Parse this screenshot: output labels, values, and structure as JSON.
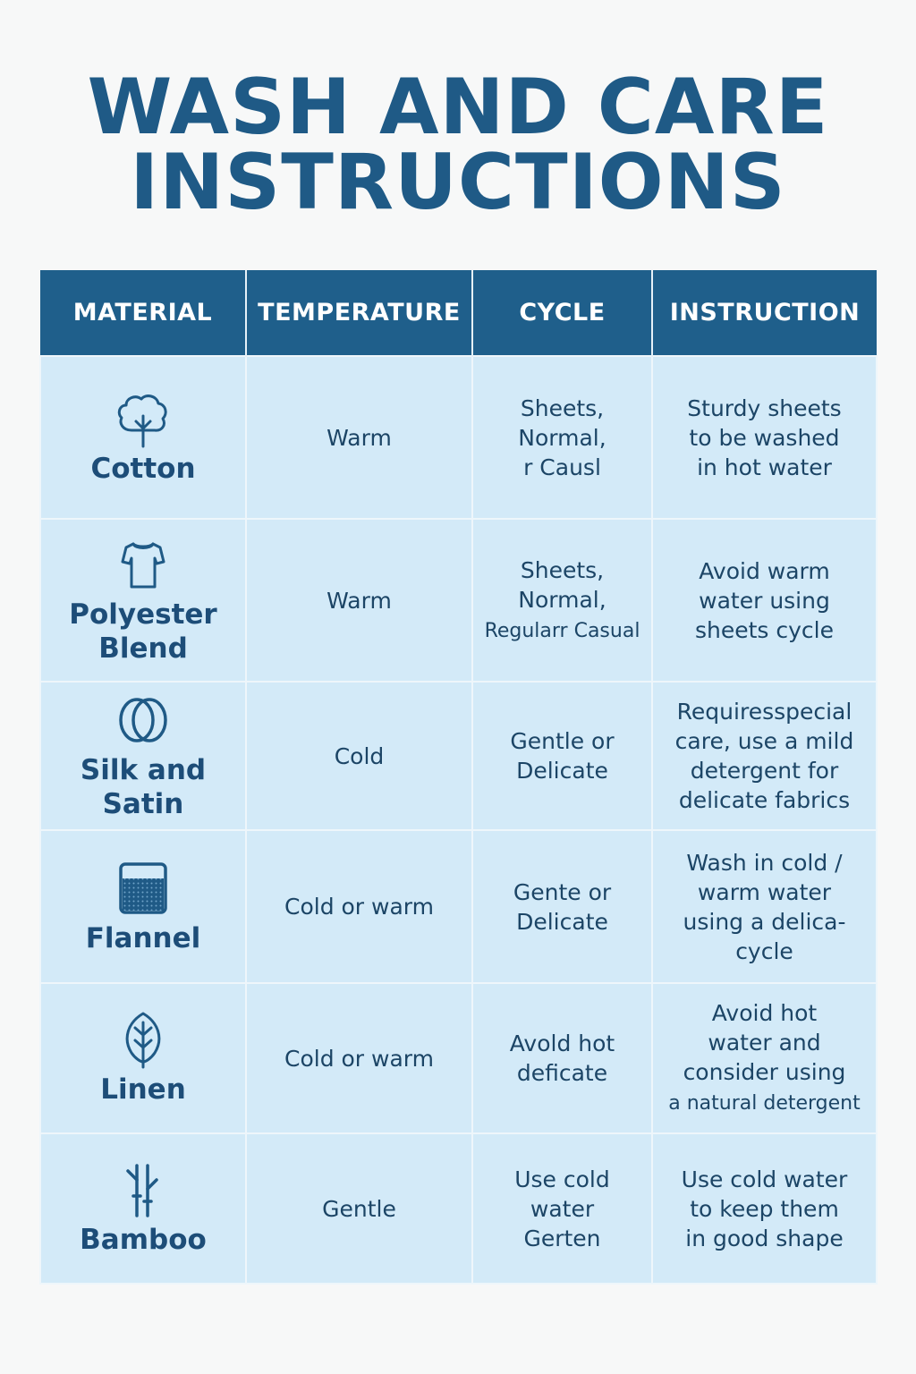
{
  "title": {
    "line1": "WASH AND CARE",
    "line2": "INSTRUCTIONS"
  },
  "table": {
    "headers": [
      "MATERIAL",
      "TEMPERATURE",
      "CYCLE",
      "INSTRUCTION"
    ],
    "rows": [
      {
        "icon": "cotton-plant-icon",
        "material": "Cotton",
        "temperature": "Warm",
        "cycle": "Sheets,\nNormal,\nr Causl",
        "instruction": "Sturdy sheets\nto be washed\nin hot water"
      },
      {
        "icon": "shirt-icon",
        "material": "Polyester\nBlend",
        "temperature": "Warm",
        "cycle": "Sheets,\nNormal,",
        "cycle_extra": "Regularr Casual",
        "instruction": "Avoid warm\nwater using\nsheets cycle"
      },
      {
        "icon": "silk-rings-icon",
        "material": "Silk and Satin",
        "temperature": "Cold",
        "cycle": "Gentle or\nDelicate",
        "instruction": "Requiresspecial\ncare, use a mild\ndetergent for\ndelicate fabrics"
      },
      {
        "icon": "flannel-fabric-icon",
        "material": "Flannel",
        "temperature": "Cold or warm",
        "cycle": "Gente or\nDelicate",
        "instruction": "Wash in cold /\nwarm water\nusing a delica-\ncycle"
      },
      {
        "icon": "leaf-icon",
        "material": "Linen",
        "temperature": "Cold or warm",
        "cycle": "Avold hot\ndeficate",
        "instruction": "Avoid hot\nwater and\nconsider using",
        "instruction_extra": "a natural detergent"
      },
      {
        "icon": "bamboo-icon",
        "material": "Bamboo",
        "temperature": "Gentle",
        "cycle": "Use cold\nwater\nGerten",
        "instruction": "Use cold water\nto keep them\nin good shape"
      }
    ]
  },
  "colors": {
    "header_bg": "#1f5f8b",
    "cell_bg": "#d3eaf8",
    "title": "#1f5a86",
    "text": "#1c4566"
  }
}
